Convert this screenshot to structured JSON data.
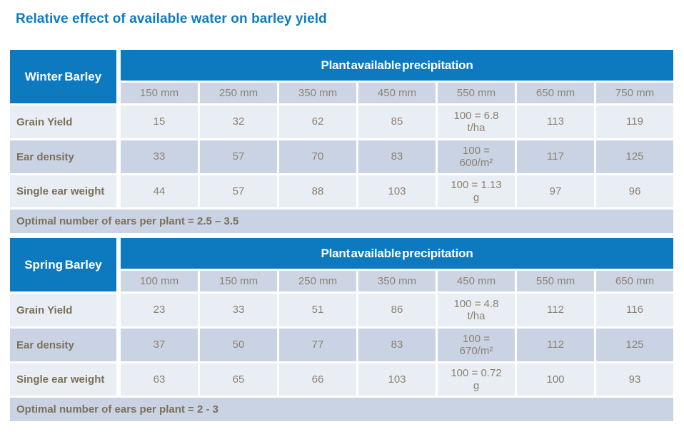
{
  "title": "Relative effect of available water on barley yield",
  "colors": {
    "brand_blue": "#0d7ac0",
    "row_light": "#e9edf4",
    "row_dark": "#c9d3e4",
    "column_header_bg": "#cdd5e5",
    "value_text": "#8d8271",
    "label_text": "#7c7059",
    "header_text": "#ffffff"
  },
  "chart_data": [
    {
      "type": "table",
      "name": "Winter Barley",
      "header": "Plant available precipitation",
      "columns": [
        "150 mm",
        "250 mm",
        "350 mm",
        "450 mm",
        "550 mm",
        "650 mm",
        "750 mm"
      ],
      "row_labels": [
        "Grain Yield",
        "Ear density",
        "Single ear weight"
      ],
      "rows": [
        [
          "15",
          "32",
          "62",
          "85",
          "100 = 6.8\nt/ha",
          "113",
          "119"
        ],
        [
          "33",
          "57",
          "70",
          "83",
          "100 =\n600/m²",
          "117",
          "125"
        ],
        [
          "44",
          "57",
          "88",
          "103",
          "100 = 1.13\ng",
          "97",
          "96"
        ]
      ],
      "footer": "Optimal number of ears per plant = 2.5 – 3.5"
    },
    {
      "type": "table",
      "name": "Spring Barley",
      "header": "Plant available precipitation",
      "columns": [
        "100 mm",
        "150 mm",
        "250 mm",
        "350 mm",
        "450 mm",
        "550 mm",
        "650 mm"
      ],
      "row_labels": [
        "Grain Yield",
        "Ear density",
        "Single ear weight"
      ],
      "rows": [
        [
          "23",
          "33",
          "51",
          "86",
          "100 = 4.8\nt/ha",
          "112",
          "116"
        ],
        [
          "37",
          "50",
          "77",
          "83",
          "100 =\n670/m²",
          "112",
          "125"
        ],
        [
          "63",
          "65",
          "66",
          "103",
          "100 = 0.72\ng",
          "100",
          "93"
        ]
      ],
      "footer": "Optimal number of ears per plant = 2 - 3"
    }
  ]
}
